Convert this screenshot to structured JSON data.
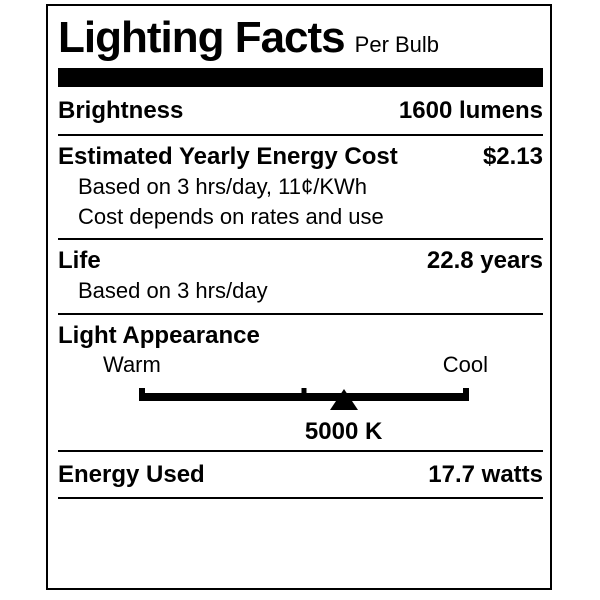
{
  "label": {
    "title": "Lighting Facts",
    "subtitle": "Per Bulb",
    "colors": {
      "ink": "#000000",
      "paper": "#ffffff"
    },
    "rows": {
      "brightness": {
        "label": "Brightness",
        "value": "1600 lumens"
      },
      "energy_cost": {
        "label": "Estimated Yearly Energy Cost",
        "value": "$2.13",
        "notes": [
          "Based on 3 hrs/day, 11¢/KWh",
          "Cost depends on rates and use"
        ]
      },
      "life": {
        "label": "Life",
        "value": "22.8 years",
        "note": "Based on 3 hrs/day"
      },
      "light_appearance": {
        "label": "Light Appearance",
        "warm_label": "Warm",
        "cool_label": "Cool",
        "temperature": "5000 K",
        "marker_position_pct": 62
      },
      "energy_used": {
        "label": "Energy Used",
        "value": "17.7 watts"
      }
    }
  }
}
